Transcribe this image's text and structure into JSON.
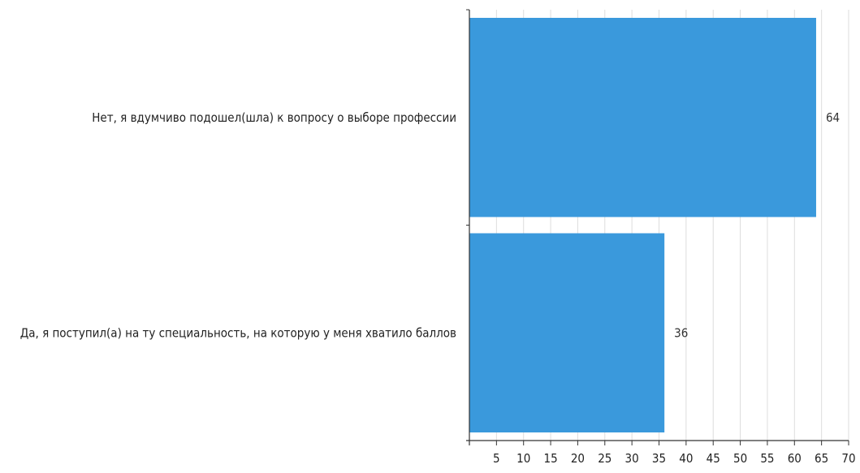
{
  "chart_data": {
    "type": "bar",
    "orientation": "horizontal",
    "categories": [
      "Нет, я вдумчиво подошел(шла) к вопросу о выборе профессии",
      "Да, я поступил(а) на ту специальность, на которую у меня хватило баллов"
    ],
    "values": [
      64,
      36
    ],
    "data_labels": [
      "64",
      "36"
    ],
    "xlim": [
      0,
      70
    ],
    "x_ticks": [
      5,
      10,
      15,
      20,
      25,
      30,
      35,
      40,
      45,
      50,
      55,
      60,
      65,
      70
    ],
    "x_tick_labels": [
      "5",
      "10",
      "15",
      "20",
      "25",
      "30",
      "35",
      "40",
      "45",
      "50",
      "55",
      "60",
      "65",
      "70"
    ],
    "grid": "vertical",
    "legend": "none",
    "bar_color": "#3a99dc",
    "grid_color": "#dddddd",
    "axis_color": "#333333"
  }
}
